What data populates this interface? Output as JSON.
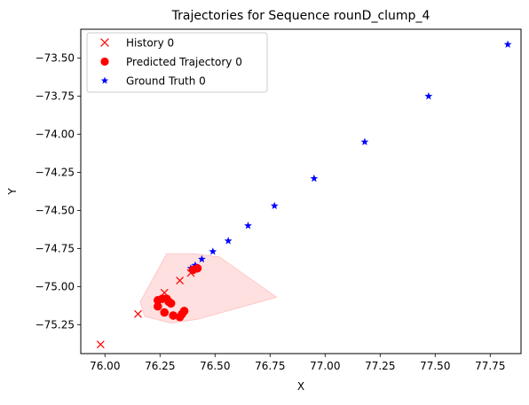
{
  "chart_data": {
    "type": "scatter",
    "title": "Trajectories for Sequence rounD_clump_4",
    "xlabel": "X",
    "ylabel": "Y",
    "xlim": [
      75.89,
      77.89
    ],
    "ylim": [
      -75.44,
      -73.31
    ],
    "xticks": [
      76.0,
      76.25,
      76.5,
      76.75,
      77.0,
      77.25,
      77.5,
      77.75
    ],
    "xtick_labels": [
      "76.00",
      "76.25",
      "76.50",
      "76.75",
      "77.00",
      "77.25",
      "77.50",
      "77.75"
    ],
    "yticks": [
      -73.5,
      -73.75,
      -74.0,
      -74.25,
      -74.5,
      -74.75,
      -75.0,
      -75.25
    ],
    "ytick_labels": [
      "−73.50",
      "−73.75",
      "−74.00",
      "−74.25",
      "−74.50",
      "−74.75",
      "−75.00",
      "−75.25"
    ],
    "grid": false,
    "legend_position": "upper-left",
    "uncertainty_region": {
      "color": "#ff9999",
      "polygon": [
        [
          76.28,
          -74.785
        ],
        [
          76.41,
          -74.785
        ],
        [
          76.52,
          -74.805
        ],
        [
          76.78,
          -75.07
        ],
        [
          76.42,
          -75.215
        ],
        [
          76.3,
          -75.24
        ],
        [
          76.18,
          -75.195
        ],
        [
          76.16,
          -75.1
        ]
      ]
    },
    "series": [
      {
        "name": "History 0",
        "marker": "x",
        "color": "#ff0000",
        "points": [
          [
            75.98,
            -75.38
          ],
          [
            76.15,
            -75.18
          ],
          [
            76.27,
            -75.04
          ],
          [
            76.34,
            -74.96
          ],
          [
            76.39,
            -74.91
          ]
        ]
      },
      {
        "name": "Predicted Trajectory 0",
        "marker": "circle",
        "color": "#ff0000",
        "points": [
          [
            76.24,
            -75.09
          ],
          [
            76.26,
            -75.08
          ],
          [
            76.28,
            -75.08
          ],
          [
            76.29,
            -75.1
          ],
          [
            76.3,
            -75.11
          ],
          [
            76.24,
            -75.13
          ],
          [
            76.27,
            -75.17
          ],
          [
            76.31,
            -75.19
          ],
          [
            76.34,
            -75.2
          ],
          [
            76.35,
            -75.18
          ],
          [
            76.36,
            -75.16
          ],
          [
            76.4,
            -74.89
          ],
          [
            76.42,
            -74.88
          ]
        ]
      },
      {
        "name": "Ground Truth 0",
        "marker": "star",
        "color": "#0000ff",
        "points": [
          [
            76.39,
            -74.88
          ],
          [
            76.41,
            -74.86
          ],
          [
            76.44,
            -74.82
          ],
          [
            76.49,
            -74.77
          ],
          [
            76.56,
            -74.7
          ],
          [
            76.65,
            -74.6
          ],
          [
            76.77,
            -74.47
          ],
          [
            76.95,
            -74.29
          ],
          [
            77.18,
            -74.05
          ],
          [
            77.47,
            -73.75
          ],
          [
            77.83,
            -73.41
          ]
        ]
      }
    ]
  }
}
